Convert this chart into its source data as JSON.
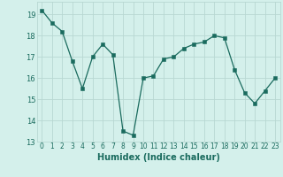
{
  "x": [
    0,
    1,
    2,
    3,
    4,
    5,
    6,
    7,
    8,
    9,
    10,
    11,
    12,
    13,
    14,
    15,
    16,
    17,
    18,
    19,
    20,
    21,
    22,
    23
  ],
  "y": [
    19.2,
    18.6,
    18.2,
    16.8,
    15.5,
    17.0,
    17.6,
    17.1,
    13.5,
    13.3,
    16.0,
    16.1,
    16.9,
    17.0,
    17.4,
    17.6,
    17.7,
    18.0,
    17.9,
    16.4,
    15.3,
    14.8,
    15.4,
    16.0
  ],
  "xlabel": "Humidex (Indice chaleur)",
  "line_color": "#1a6b5e",
  "bg_color": "#d4f0eb",
  "grid_color": "#b8d8d2",
  "ylim": [
    13,
    19.6
  ],
  "xlim": [
    -0.5,
    23.5
  ],
  "yticks": [
    13,
    14,
    15,
    16,
    17,
    18,
    19
  ],
  "xticks": [
    0,
    1,
    2,
    3,
    4,
    5,
    6,
    7,
    8,
    9,
    10,
    11,
    12,
    13,
    14,
    15,
    16,
    17,
    18,
    19,
    20,
    21,
    22,
    23
  ],
  "tick_fontsize": 5.5,
  "xlabel_fontsize": 7.0,
  "linewidth": 0.9,
  "markersize": 2.2
}
